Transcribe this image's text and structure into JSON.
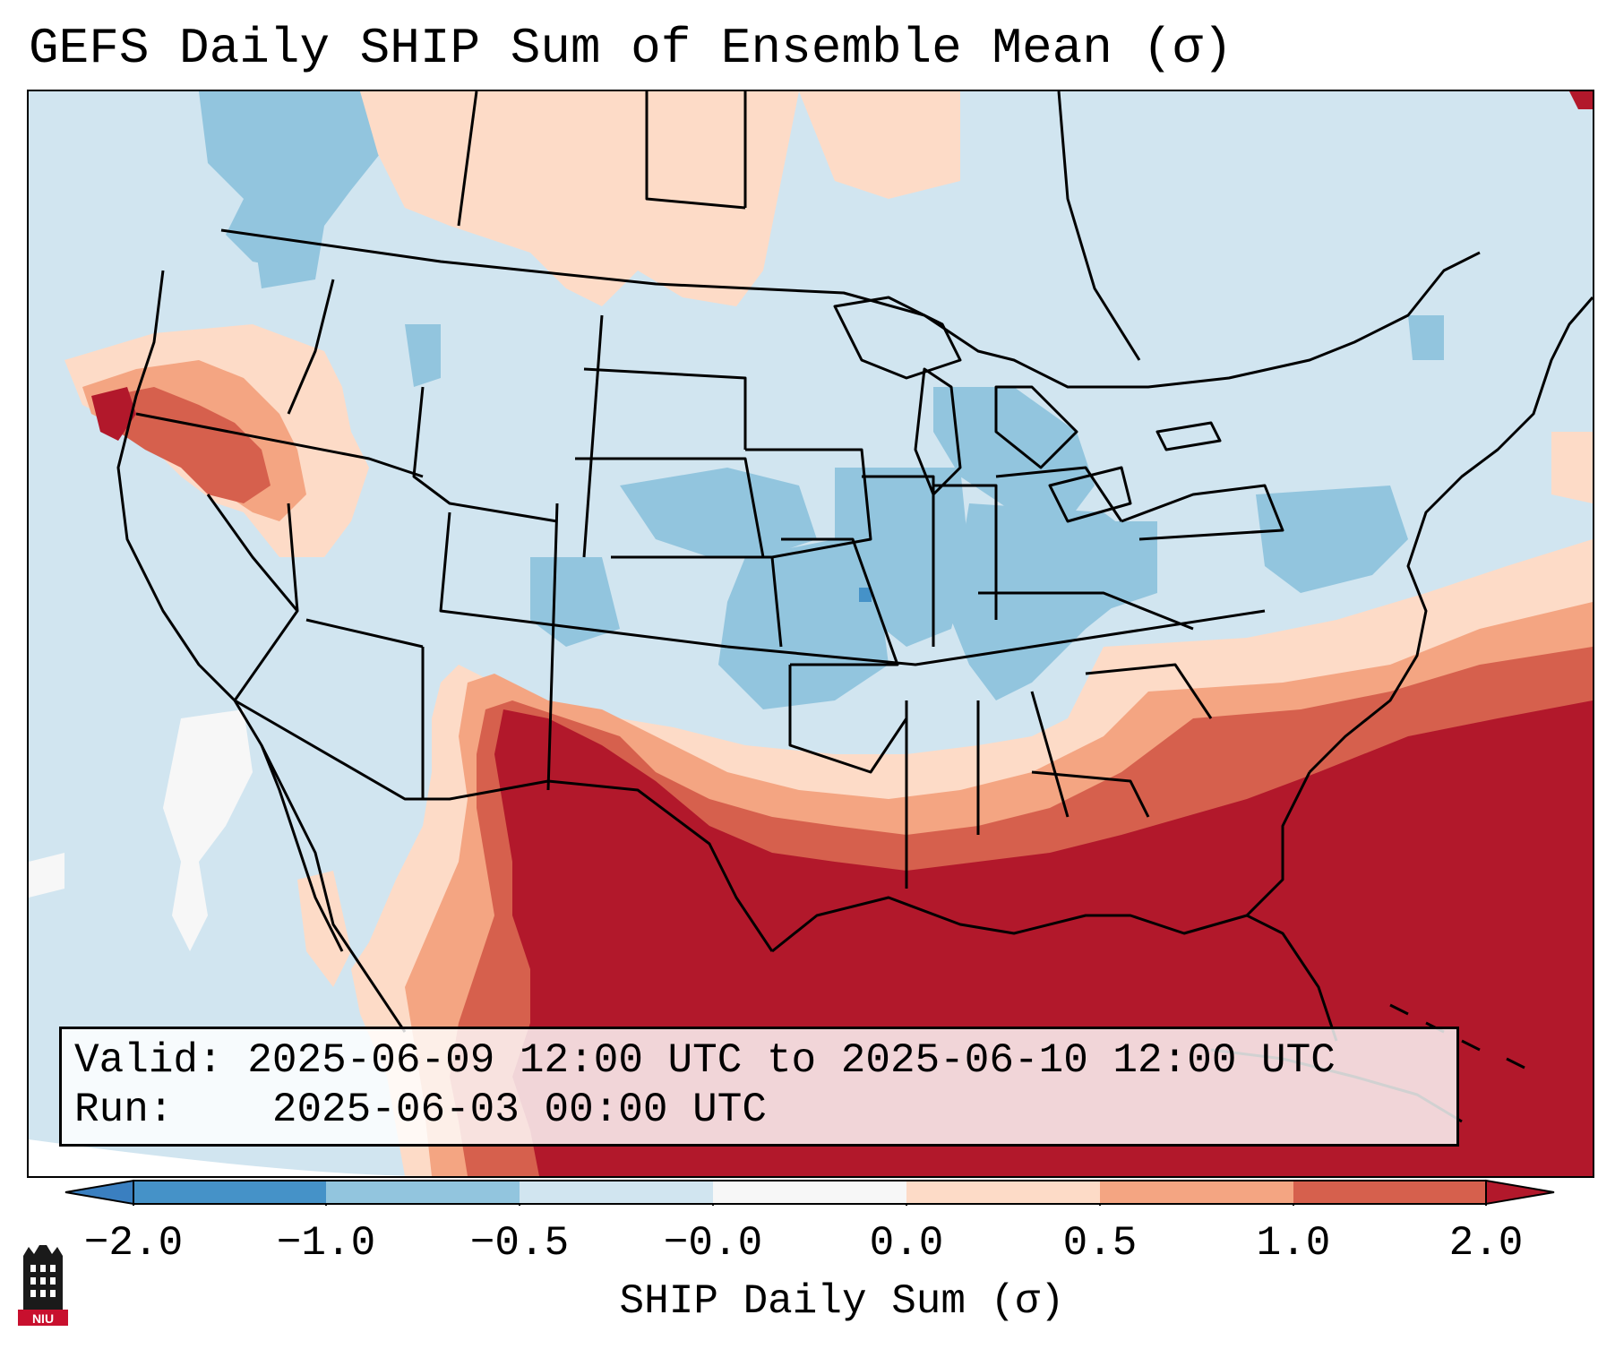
{
  "title": "GEFS Daily SHIP Sum of Ensemble Mean (σ)",
  "info": {
    "valid_label": "Valid:",
    "valid_value": "2025-06-09 12:00 UTC to 2025-06-10 12:00 UTC",
    "run_label": "Run:",
    "run_value": "2025-06-03 00:00 UTC"
  },
  "colorbar": {
    "label": "SHIP Daily Sum (σ)",
    "ticks": [
      "−2.0",
      "−1.0",
      "−0.5",
      "−0.0",
      "0.0",
      "0.5",
      "1.0",
      "2.0"
    ],
    "bins": [
      {
        "range": "< -2.0",
        "color": "#3a7fc0"
      },
      {
        "range": "-2.0 to -1.0",
        "color": "#4592c8"
      },
      {
        "range": "-1.0 to -0.5",
        "color": "#92c5de"
      },
      {
        "range": "-0.5 to -0.0",
        "color": "#d1e5f0"
      },
      {
        "range": "-0.0 to 0.0",
        "color": "#f7f7f7"
      },
      {
        "range": "0.0 to 0.5",
        "color": "#fddbc7"
      },
      {
        "range": "0.5 to 1.0",
        "color": "#f4a582"
      },
      {
        "range": "1.0 to 2.0",
        "color": "#d6604d"
      },
      {
        "range": "> 2.0",
        "color": "#b2182b"
      }
    ]
  },
  "logo": {
    "text": "NIU"
  },
  "colors": {
    "strong_positive": "#b2182b",
    "positive": "#d6604d",
    "weak_positive": "#f4a582",
    "very_weak_positive": "#fddbc7",
    "weak_negative": "#d1e5f0",
    "negative": "#92c5de",
    "strong_negative": "#4592c8"
  },
  "icons": {
    "logo": "niu-logo-icon"
  }
}
